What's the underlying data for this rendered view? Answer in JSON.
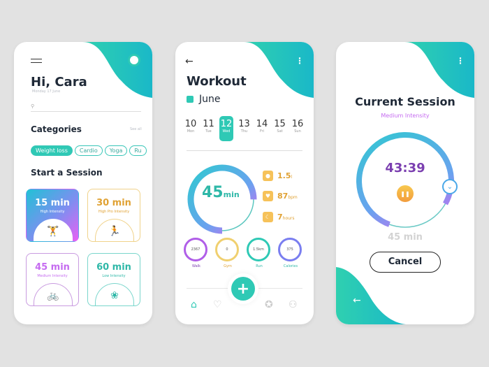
{
  "colors": {
    "teal": "#2fc9b5",
    "purple": "#c56bf0",
    "orange": "#e0a234",
    "blue": "#4aa8e8"
  },
  "screen1": {
    "greeting": "Hi, Cara",
    "date": "Monday 17 June",
    "search_icon": "search-icon",
    "categories_title": "Categories",
    "see_all": "See all",
    "chips": [
      "Weight loss",
      "Cardio",
      "Yoga",
      "Ru"
    ],
    "session_title": "Start a Session",
    "cards": [
      {
        "time": "15 min",
        "label": "High Intensity",
        "icon": "dumbbell-icon",
        "glyph": "🏋"
      },
      {
        "time": "30 min",
        "label": "High Pro Intensity",
        "icon": "running-icon",
        "glyph": "🏃"
      },
      {
        "time": "45 min",
        "label": "Medium Intensity",
        "icon": "bicycle-icon",
        "glyph": "🚲"
      },
      {
        "time": "60 min",
        "label": "Low Intensity",
        "icon": "lotus-icon",
        "glyph": "❀"
      }
    ]
  },
  "screen2": {
    "title": "Workout",
    "month": "June",
    "days": [
      {
        "n": "10",
        "w": "Mon"
      },
      {
        "n": "11",
        "w": "Tue"
      },
      {
        "n": "12",
        "w": "Wed"
      },
      {
        "n": "13",
        "w": "Thu"
      },
      {
        "n": "14",
        "w": "Fri"
      },
      {
        "n": "15",
        "w": "Sat"
      },
      {
        "n": "16",
        "w": "Sun"
      }
    ],
    "selected_day": "12",
    "ring_value": "45",
    "ring_unit": "min",
    "ring_progress": 0.75,
    "stats": [
      {
        "v": "1.5",
        "u": "l",
        "icon": "water-drop-icon"
      },
      {
        "v": "87",
        "u": "bpm",
        "icon": "heart-icon"
      },
      {
        "v": "7",
        "u": "hours",
        "icon": "moon-icon"
      }
    ],
    "minis": [
      {
        "v": "2367",
        "l": "Walk"
      },
      {
        "v": "0",
        "l": "Gym"
      },
      {
        "v": "1.5km",
        "l": "Run"
      },
      {
        "v": "375",
        "l": "Calories"
      }
    ]
  },
  "screen3": {
    "title": "Current Session",
    "subtitle": "Medium Intensity",
    "timer": "43:39",
    "total": "45 min",
    "cancel": "Cancel",
    "progress": 0.97
  }
}
